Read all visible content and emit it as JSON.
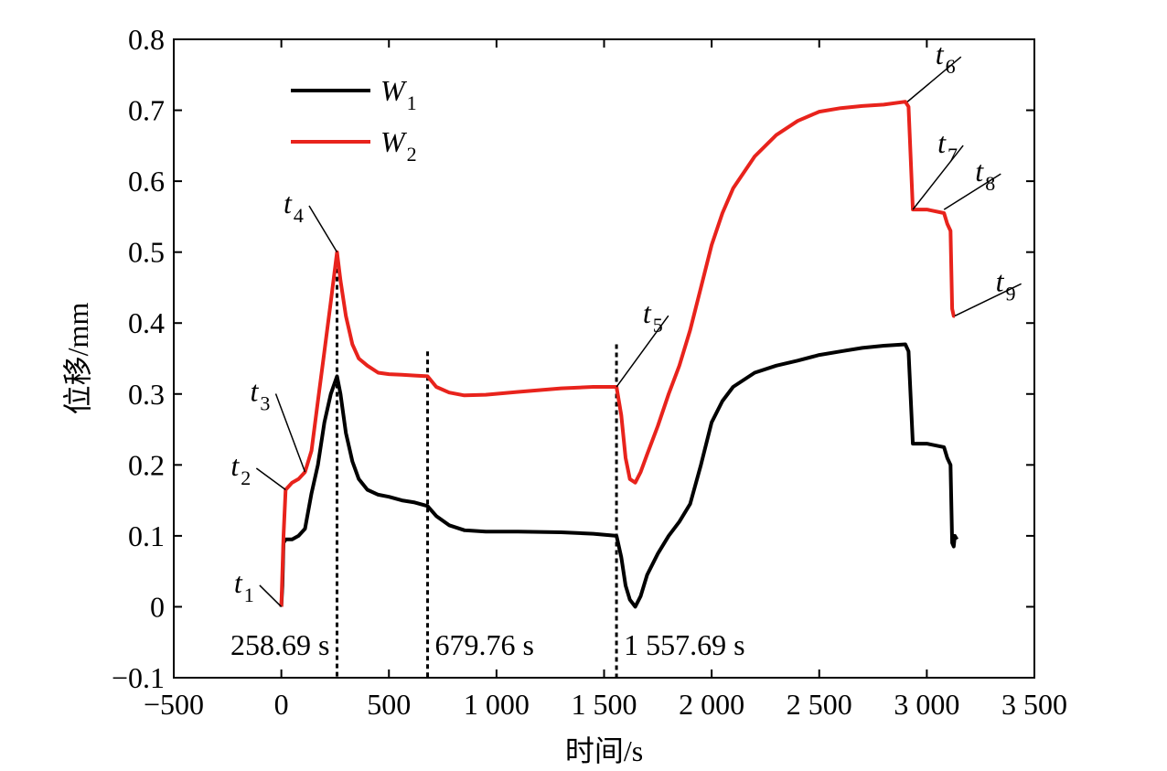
{
  "chart_data": {
    "type": "line",
    "xlabel": "时间/s",
    "ylabel": "位移/mm",
    "xlim": [
      -500,
      3500
    ],
    "ylim": [
      -0.1,
      0.8
    ],
    "x_ticks": [
      -500,
      0,
      500,
      1000,
      1500,
      2000,
      2500,
      3000,
      3500
    ],
    "x_tick_labels": [
      "−500",
      "0",
      "500",
      "1 000",
      "1 500",
      "2 000",
      "2 500",
      "3 000",
      "3 500"
    ],
    "y_ticks": [
      -0.1,
      0,
      0.1,
      0.2,
      0.3,
      0.4,
      0.5,
      0.6,
      0.7,
      0.8
    ],
    "y_tick_labels": [
      "−0.1",
      "0",
      "0.1",
      "0.2",
      "0.3",
      "0.4",
      "0.5",
      "0.6",
      "0.7",
      "0.8"
    ],
    "grid": false,
    "legend_position": "top-left",
    "series": [
      {
        "name_main": "W",
        "name_sub": "1",
        "color": "#000000",
        "points": [
          [
            0,
            0
          ],
          [
            5,
            0.03
          ],
          [
            10,
            0.09
          ],
          [
            20,
            0.095
          ],
          [
            50,
            0.095
          ],
          [
            80,
            0.1
          ],
          [
            110,
            0.11
          ],
          [
            140,
            0.16
          ],
          [
            170,
            0.2
          ],
          [
            200,
            0.26
          ],
          [
            230,
            0.3
          ],
          [
            258.69,
            0.325
          ],
          [
            275,
            0.3
          ],
          [
            300,
            0.245
          ],
          [
            330,
            0.205
          ],
          [
            360,
            0.18
          ],
          [
            400,
            0.165
          ],
          [
            450,
            0.158
          ],
          [
            500,
            0.155
          ],
          [
            560,
            0.15
          ],
          [
            620,
            0.147
          ],
          [
            679.76,
            0.142
          ],
          [
            720,
            0.128
          ],
          [
            780,
            0.115
          ],
          [
            850,
            0.108
          ],
          [
            950,
            0.106
          ],
          [
            1100,
            0.106
          ],
          [
            1300,
            0.105
          ],
          [
            1450,
            0.103
          ],
          [
            1557.69,
            0.1
          ],
          [
            1580,
            0.07
          ],
          [
            1600,
            0.03
          ],
          [
            1620,
            0.01
          ],
          [
            1645,
            0
          ],
          [
            1670,
            0.015
          ],
          [
            1700,
            0.045
          ],
          [
            1750,
            0.075
          ],
          [
            1800,
            0.1
          ],
          [
            1850,
            0.12
          ],
          [
            1900,
            0.145
          ],
          [
            1950,
            0.2
          ],
          [
            2000,
            0.26
          ],
          [
            2050,
            0.29
          ],
          [
            2100,
            0.31
          ],
          [
            2200,
            0.33
          ],
          [
            2300,
            0.34
          ],
          [
            2400,
            0.347
          ],
          [
            2500,
            0.355
          ],
          [
            2600,
            0.36
          ],
          [
            2700,
            0.365
          ],
          [
            2800,
            0.368
          ],
          [
            2900,
            0.37
          ],
          [
            2915,
            0.36
          ],
          [
            2935,
            0.23
          ],
          [
            3000,
            0.23
          ],
          [
            3080,
            0.225
          ],
          [
            3095,
            0.21
          ],
          [
            3110,
            0.2
          ],
          [
            3118,
            0.09
          ],
          [
            3125,
            0.085
          ],
          [
            3130,
            0.1
          ],
          [
            3140,
            0.095
          ]
        ]
      },
      {
        "name_main": "W",
        "name_sub": "2",
        "color": "#e8231c",
        "points": [
          [
            0,
            0
          ],
          [
            10,
            0.1
          ],
          [
            20,
            0.165
          ],
          [
            50,
            0.175
          ],
          [
            80,
            0.18
          ],
          [
            110,
            0.19
          ],
          [
            140,
            0.22
          ],
          [
            170,
            0.29
          ],
          [
            200,
            0.36
          ],
          [
            230,
            0.43
          ],
          [
            258.69,
            0.5
          ],
          [
            275,
            0.46
          ],
          [
            300,
            0.41
          ],
          [
            330,
            0.37
          ],
          [
            360,
            0.35
          ],
          [
            400,
            0.34
          ],
          [
            450,
            0.33
          ],
          [
            500,
            0.328
          ],
          [
            560,
            0.327
          ],
          [
            620,
            0.326
          ],
          [
            679.76,
            0.325
          ],
          [
            720,
            0.31
          ],
          [
            780,
            0.302
          ],
          [
            850,
            0.298
          ],
          [
            950,
            0.299
          ],
          [
            1100,
            0.303
          ],
          [
            1300,
            0.308
          ],
          [
            1450,
            0.31
          ],
          [
            1557.69,
            0.31
          ],
          [
            1580,
            0.27
          ],
          [
            1600,
            0.21
          ],
          [
            1620,
            0.18
          ],
          [
            1645,
            0.175
          ],
          [
            1670,
            0.19
          ],
          [
            1700,
            0.215
          ],
          [
            1750,
            0.255
          ],
          [
            1800,
            0.3
          ],
          [
            1850,
            0.34
          ],
          [
            1900,
            0.39
          ],
          [
            1950,
            0.45
          ],
          [
            2000,
            0.51
          ],
          [
            2050,
            0.555
          ],
          [
            2100,
            0.59
          ],
          [
            2200,
            0.635
          ],
          [
            2300,
            0.665
          ],
          [
            2400,
            0.685
          ],
          [
            2500,
            0.698
          ],
          [
            2600,
            0.703
          ],
          [
            2700,
            0.706
          ],
          [
            2800,
            0.708
          ],
          [
            2900,
            0.712
          ],
          [
            2915,
            0.705
          ],
          [
            2935,
            0.56
          ],
          [
            3000,
            0.56
          ],
          [
            3080,
            0.555
          ],
          [
            3095,
            0.54
          ],
          [
            3110,
            0.53
          ],
          [
            3118,
            0.42
          ],
          [
            3125,
            0.41
          ],
          [
            3130,
            0.41
          ]
        ]
      }
    ],
    "vertical_lines": [
      {
        "x": 258.69,
        "label": "258.69 s",
        "y_top": 0.5,
        "label_side": "left"
      },
      {
        "x": 679.76,
        "label": "679.76 s",
        "y_top": 0.36,
        "label_side": "right"
      },
      {
        "x": 1557.69,
        "label": "1 557.69 s",
        "y_top": 0.37,
        "label_side": "right"
      }
    ],
    "annotations": [
      {
        "main": "t",
        "sub": "1",
        "point": [
          0,
          0
        ],
        "text_at": [
          -220,
          0.02
        ]
      },
      {
        "main": "t",
        "sub": "2",
        "point": [
          20,
          0.165
        ],
        "text_at": [
          -235,
          0.185
        ]
      },
      {
        "main": "t",
        "sub": "3",
        "point": [
          110,
          0.19
        ],
        "text_at": [
          -145,
          0.29
        ]
      },
      {
        "main": "t",
        "sub": "4",
        "point": [
          258.69,
          0.5
        ],
        "text_at": [
          10,
          0.555
        ]
      },
      {
        "main": "t",
        "sub": "5",
        "point": [
          1557.69,
          0.31
        ],
        "text_at": [
          1680,
          0.4
        ]
      },
      {
        "main": "t",
        "sub": "6",
        "point": [
          2910,
          0.712
        ],
        "text_at": [
          3040,
          0.765
        ]
      },
      {
        "main": "t",
        "sub": "7",
        "point": [
          2935,
          0.56
        ],
        "text_at": [
          3050,
          0.64
        ]
      },
      {
        "main": "t",
        "sub": "8",
        "point": [
          3080,
          0.56
        ],
        "text_at": [
          3225,
          0.6
        ]
      },
      {
        "main": "t",
        "sub": "9",
        "point": [
          3130,
          0.41
        ],
        "text_at": [
          3320,
          0.445
        ]
      }
    ]
  }
}
